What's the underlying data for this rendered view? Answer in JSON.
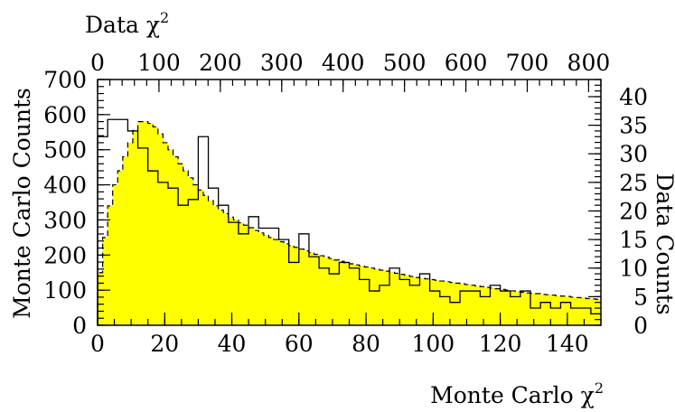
{
  "chart_data": {
    "type": "bar",
    "bottom_xlabel": "Monte Carlo χ",
    "top_xlabel": "Data χ",
    "xlabel_superscript": "2",
    "left_ylabel": "Monte Carlo Counts",
    "right_ylabel": "Data Counts",
    "bottom_xlim": [
      0,
      150
    ],
    "top_xlim": [
      0,
      820
    ],
    "left_ylim": [
      0,
      700
    ],
    "right_ylim": [
      0,
      43
    ],
    "bottom_ticks": [
      "0",
      "20",
      "40",
      "60",
      "80",
      "100",
      "120",
      "140"
    ],
    "top_ticks": [
      "0",
      "100",
      "200",
      "300",
      "400",
      "500",
      "600",
      "700",
      "800"
    ],
    "left_ticks": [
      "0",
      "100",
      "200",
      "300",
      "400",
      "500",
      "600",
      "700"
    ],
    "right_ticks": [
      "0",
      "5",
      "10",
      "15",
      "20",
      "25",
      "30",
      "35",
      "40"
    ],
    "fill_color": "#ffff00",
    "series": [
      {
        "kind": "filled histogram (left axis)",
        "bin_width": 1.5,
        "values": [
          150,
          250,
          340,
          400,
          440,
          480,
          520,
          555,
          580,
          580,
          575,
          565,
          545,
          520,
          500,
          480,
          460,
          440,
          420,
          400,
          385,
          370,
          355,
          340,
          328,
          318,
          308,
          300,
          292,
          285,
          278,
          270,
          263,
          256,
          250,
          244,
          238,
          232,
          227,
          222,
          217,
          212,
          207,
          202,
          198,
          194,
          190,
          186,
          182,
          178,
          175,
          172,
          169,
          166,
          163,
          160,
          157,
          154,
          151,
          148,
          145,
          142,
          139,
          136,
          134,
          132,
          130,
          128,
          126,
          124,
          122,
          120,
          118,
          116,
          114,
          112,
          110,
          108,
          106,
          104,
          102,
          100,
          98,
          96,
          94,
          92,
          91,
          90,
          88,
          87,
          86,
          84,
          83,
          82,
          80,
          79,
          78,
          76,
          75,
          74
        ]
      },
      {
        "kind": "outline histogram (right axis)",
        "bin_width": 16.4,
        "values": [
          33,
          36,
          36,
          34,
          31,
          27,
          25,
          24,
          21,
          22,
          33,
          24,
          21,
          18,
          16,
          19,
          17,
          17,
          15,
          11,
          16,
          12,
          10,
          9,
          11,
          10,
          8,
          6,
          7,
          10,
          8,
          7,
          9,
          6,
          5,
          4,
          6,
          6,
          5,
          7,
          6,
          5,
          6,
          3,
          4,
          3,
          4,
          3,
          3,
          2
        ]
      }
    ]
  }
}
